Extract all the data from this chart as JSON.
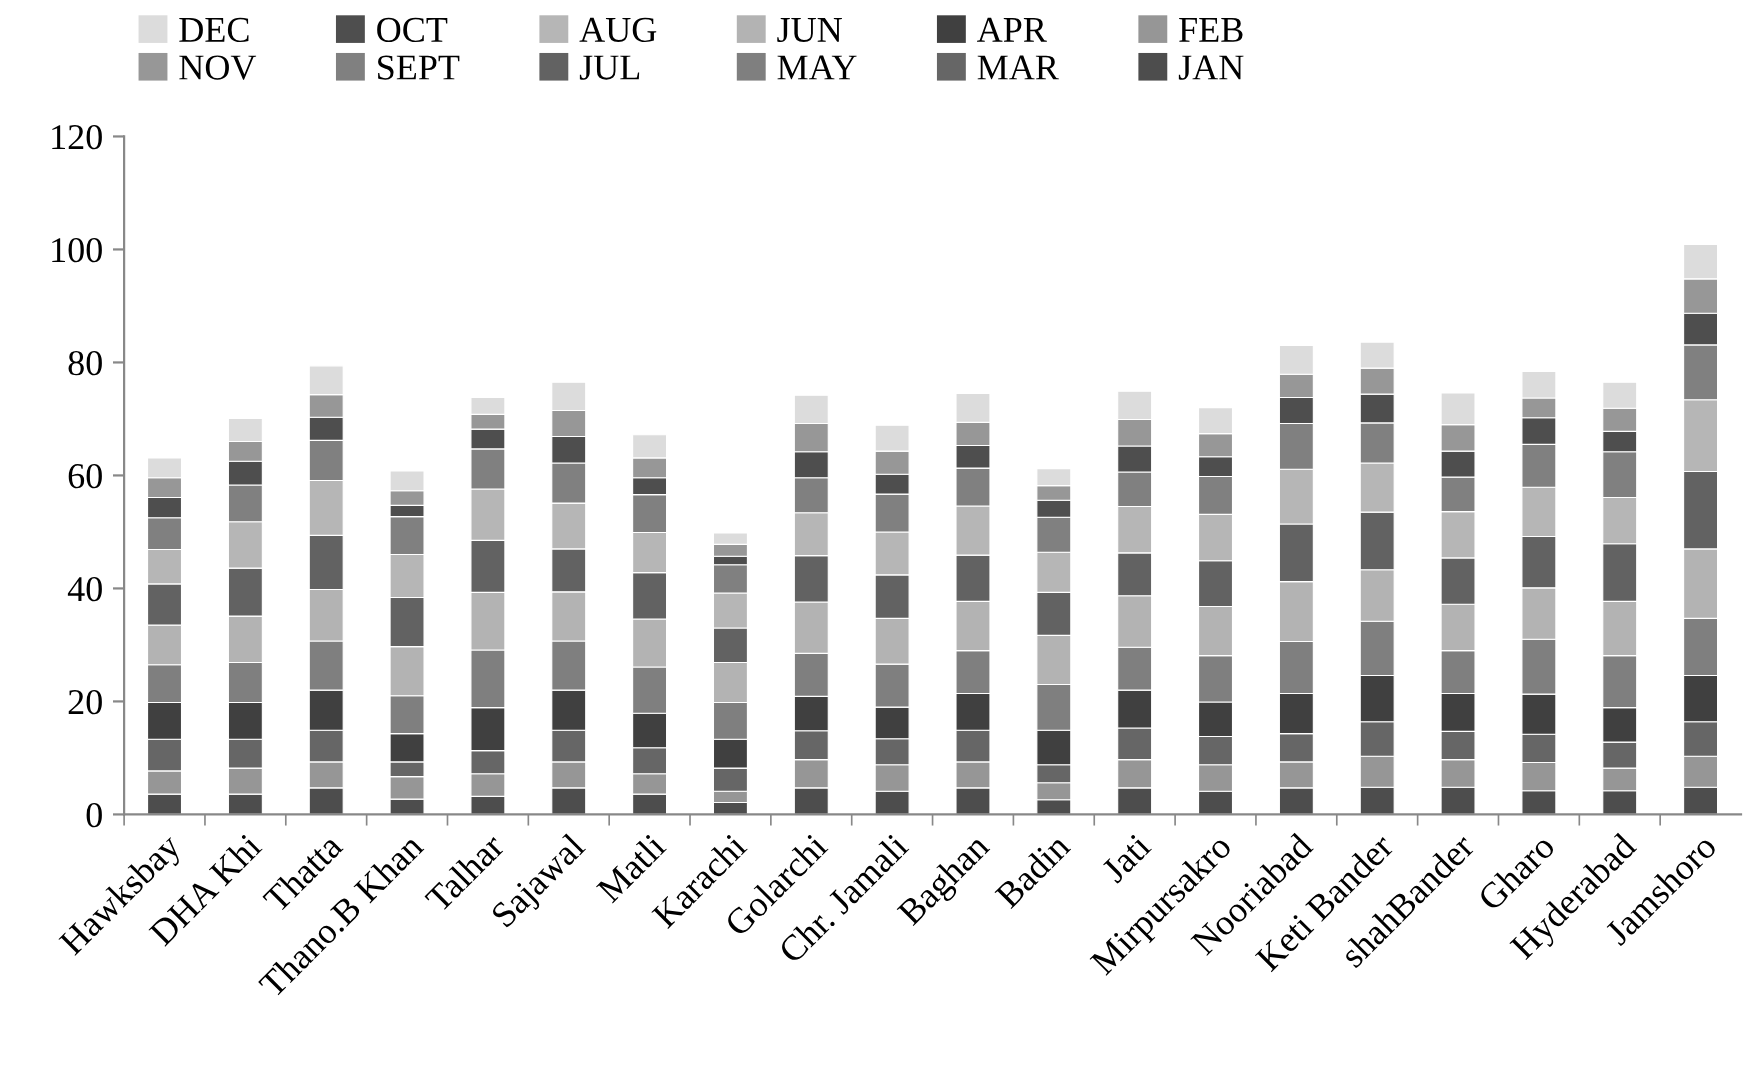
{
  "chart_data": {
    "type": "bar",
    "stacked": true,
    "legend": "top",
    "grid": false,
    "categories": [
      "Hawksbay",
      "DHA Khi",
      "Thatta",
      "Thano.B Khan",
      "Talhar",
      "Sajawal",
      "Matli",
      "Karachi",
      "Golarchi",
      "Chr. Jamali",
      "Baghan",
      "Badin",
      "Jati",
      "Mirpursakro",
      "Nooriabad",
      "Keti Bander",
      "shahBander",
      "Gharo",
      "Hyderabad",
      "Jamshoro"
    ],
    "ylim": [
      0,
      120
    ],
    "yticks": [
      0,
      20,
      40,
      60,
      80,
      100,
      120
    ],
    "series": [
      {
        "name": "JAN",
        "color": "#4d4d4d",
        "values": [
          3.6,
          3.6,
          4.7,
          2.7,
          3.2,
          4.7,
          3.6,
          2.1,
          4.7,
          4.1,
          4.7,
          2.6,
          4.7,
          4.1,
          4.7,
          4.8,
          4.8,
          4.2,
          4.2,
          4.8
        ]
      },
      {
        "name": "FEB",
        "color": "#969696",
        "values": [
          4.1,
          4.6,
          4.6,
          4.0,
          4.0,
          4.6,
          3.6,
          2.0,
          5.0,
          4.7,
          4.6,
          3.0,
          5.0,
          4.7,
          4.6,
          5.5,
          4.9,
          5.0,
          4.0,
          5.5
        ]
      },
      {
        "name": "MAR",
        "color": "#666666",
        "values": [
          5.6,
          5.1,
          5.6,
          2.6,
          4.1,
          5.6,
          4.6,
          4.1,
          5.1,
          4.6,
          5.6,
          3.2,
          5.6,
          5.0,
          5.0,
          6.1,
          5.0,
          5.0,
          4.6,
          6.1
        ]
      },
      {
        "name": "APR",
        "color": "#404040",
        "values": [
          6.5,
          6.5,
          7.1,
          5.0,
          7.6,
          7.1,
          6.1,
          5.1,
          6.1,
          5.6,
          6.5,
          6.1,
          6.7,
          6.1,
          7.1,
          8.2,
          6.7,
          7.1,
          6.1,
          8.2
        ]
      },
      {
        "name": "MAY",
        "color": "#7f7f7f",
        "values": [
          6.7,
          7.1,
          8.7,
          6.7,
          10.2,
          8.7,
          8.2,
          6.5,
          7.6,
          7.6,
          7.6,
          8.1,
          7.6,
          8.2,
          9.2,
          9.6,
          7.6,
          9.7,
          9.2,
          10.1
        ]
      },
      {
        "name": "JUN",
        "color": "#b3b3b3",
        "values": [
          7.0,
          8.2,
          9.1,
          8.7,
          10.2,
          8.7,
          8.5,
          7.1,
          9.1,
          8.1,
          8.7,
          8.7,
          9.1,
          8.7,
          10.6,
          9.1,
          8.2,
          9.1,
          9.6,
          12.3
        ]
      },
      {
        "name": "JUL",
        "color": "#626262",
        "values": [
          7.3,
          8.5,
          9.6,
          8.7,
          9.2,
          7.6,
          8.2,
          6.1,
          8.2,
          7.7,
          8.2,
          7.6,
          7.6,
          8.1,
          10.2,
          10.2,
          8.2,
          9.1,
          10.2,
          13.7
        ]
      },
      {
        "name": "AUG",
        "color": "#b6b6b6",
        "values": [
          6.1,
          8.2,
          9.7,
          7.6,
          9.1,
          8.1,
          7.1,
          6.2,
          7.6,
          7.6,
          8.7,
          7.1,
          8.2,
          8.2,
          9.7,
          8.7,
          8.2,
          8.7,
          8.2,
          12.7
        ]
      },
      {
        "name": "SEPT",
        "color": "#808080",
        "values": [
          5.6,
          6.5,
          7.1,
          6.7,
          7.1,
          7.1,
          6.7,
          5.0,
          6.2,
          6.7,
          6.7,
          6.2,
          6.1,
          6.7,
          8.1,
          7.1,
          6.1,
          7.6,
          8.1,
          9.7
        ]
      },
      {
        "name": "OCT",
        "color": "#4e4e4e",
        "values": [
          3.6,
          4.2,
          4.1,
          2.0,
          3.5,
          4.7,
          3.0,
          1.5,
          4.6,
          3.5,
          4.0,
          3.0,
          4.6,
          3.5,
          4.6,
          5.1,
          4.6,
          4.7,
          3.6,
          5.6
        ]
      },
      {
        "name": "NOV",
        "color": "#979797",
        "values": [
          3.5,
          3.5,
          4.0,
          2.6,
          2.6,
          4.6,
          3.5,
          2.1,
          5.0,
          4.1,
          4.1,
          2.6,
          4.7,
          4.1,
          4.1,
          4.6,
          4.7,
          3.5,
          4.1,
          6.1
        ]
      },
      {
        "name": "DEC",
        "color": "#dcdcdc",
        "values": [
          3.5,
          4.1,
          5.1,
          3.5,
          3.0,
          5.0,
          4.1,
          2.0,
          5.0,
          4.6,
          5.1,
          3.0,
          5.0,
          4.6,
          5.1,
          4.6,
          5.6,
          4.7,
          4.6,
          6.1
        ]
      }
    ]
  }
}
